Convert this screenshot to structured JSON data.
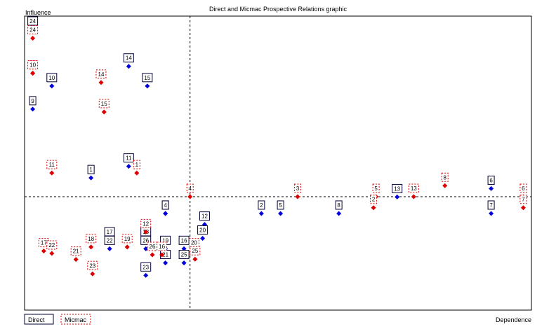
{
  "chart_data": {
    "type": "scatter",
    "title": "Direct and Micmac Prospective Relations graphic",
    "ylabel": "Influence",
    "xlabel": "Dependence",
    "xlim": [
      0,
      100
    ],
    "ylim": [
      0,
      100
    ],
    "crosshair": {
      "x": 32.5,
      "y": 38.5
    },
    "legend_position": "bottom-left",
    "series": [
      {
        "name": "Direct",
        "color": "#0000dd",
        "label_style": "solid-box",
        "points": [
          {
            "label": "24",
            "x": 1.2,
            "y": 97.5
          },
          {
            "label": "14",
            "x": 20.3,
            "y": 83.6
          },
          {
            "label": "10",
            "x": 5.0,
            "y": 76.8
          },
          {
            "label": "15",
            "x": 24.0,
            "y": 76.8
          },
          {
            "label": "9",
            "x": 1.2,
            "y": 68.8
          },
          {
            "label": "11",
            "x": 20.3,
            "y": 49.0
          },
          {
            "label": "1",
            "x": 12.8,
            "y": 45.0
          },
          {
            "label": "6",
            "x": 92.4,
            "y": 41.3
          },
          {
            "label": "13",
            "x": 73.7,
            "y": 38.4
          },
          {
            "label": "3",
            "x": 27.6,
            "y": 32.7
          },
          {
            "label": "4",
            "x": 27.6,
            "y": 32.7
          },
          {
            "label": "2",
            "x": 46.7,
            "y": 32.7
          },
          {
            "label": "5",
            "x": 50.5,
            "y": 32.7
          },
          {
            "label": "8",
            "x": 62.1,
            "y": 32.7
          },
          {
            "label": "7",
            "x": 92.4,
            "y": 32.7
          },
          {
            "label": "12",
            "x": 35.4,
            "y": 28.9
          },
          {
            "label": "20",
            "x": 35.0,
            "y": 24.1
          },
          {
            "label": "17",
            "x": 16.5,
            "y": 23.5
          },
          {
            "label": "18",
            "x": 23.7,
            "y": 23.5
          },
          {
            "label": "22",
            "x": 16.5,
            "y": 20.5
          },
          {
            "label": "26",
            "x": 23.7,
            "y": 20.5
          },
          {
            "label": "19",
            "x": 27.6,
            "y": 20.5
          },
          {
            "label": "16",
            "x": 31.3,
            "y": 20.5
          },
          {
            "label": "21",
            "x": 27.6,
            "y": 15.6
          },
          {
            "label": "25",
            "x": 31.3,
            "y": 15.6
          },
          {
            "label": "23",
            "x": 23.7,
            "y": 11.3
          }
        ]
      },
      {
        "name": "Micmac",
        "color": "#dd0000",
        "label_style": "dashed-box",
        "points": [
          {
            "label": "24",
            "x": 1.2,
            "y": 93.3
          },
          {
            "label": "9",
            "x": 1.2,
            "y": 81.2
          },
          {
            "label": "10",
            "x": 1.2,
            "y": 81.2
          },
          {
            "label": "14",
            "x": 14.8,
            "y": 78.0
          },
          {
            "label": "15",
            "x": 15.4,
            "y": 67.8
          },
          {
            "label": "11",
            "x": 5.0,
            "y": 46.7
          },
          {
            "label": "1",
            "x": 21.9,
            "y": 46.7
          },
          {
            "label": "4",
            "x": 32.5,
            "y": 38.5
          },
          {
            "label": "3",
            "x": 53.9,
            "y": 38.5
          },
          {
            "label": "5",
            "x": 69.5,
            "y": 38.5
          },
          {
            "label": "13",
            "x": 77.0,
            "y": 38.5
          },
          {
            "label": "8",
            "x": 83.2,
            "y": 42.3
          },
          {
            "label": "6",
            "x": 98.8,
            "y": 38.5
          },
          {
            "label": "2",
            "x": 69.0,
            "y": 34.7
          },
          {
            "label": "7",
            "x": 98.8,
            "y": 34.7
          },
          {
            "label": "12",
            "x": 23.7,
            "y": 26.3
          },
          {
            "label": "18",
            "x": 12.8,
            "y": 21.1
          },
          {
            "label": "19",
            "x": 20.0,
            "y": 21.1
          },
          {
            "label": "17",
            "x": 3.4,
            "y": 19.7
          },
          {
            "label": "22",
            "x": 5.0,
            "y": 18.9
          },
          {
            "label": "21",
            "x": 9.8,
            "y": 16.8
          },
          {
            "label": "26",
            "x": 25.0,
            "y": 18.4
          },
          {
            "label": "16",
            "x": 26.9,
            "y": 18.4
          },
          {
            "label": "20",
            "x": 33.3,
            "y": 19.7
          },
          {
            "label": "25",
            "x": 33.5,
            "y": 16.9
          },
          {
            "label": "23",
            "x": 13.1,
            "y": 11.8
          }
        ]
      }
    ]
  }
}
